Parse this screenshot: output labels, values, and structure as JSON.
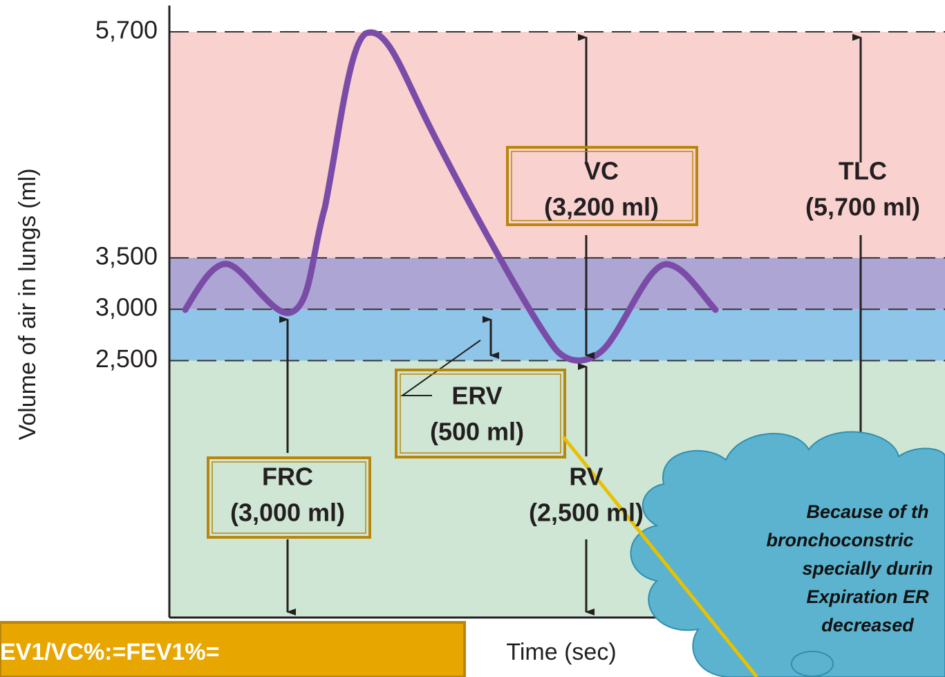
{
  "y_axis": {
    "label": "Volume of air in lungs (ml)",
    "range": [
      0,
      5700
    ],
    "ticks": [
      {
        "value": 5700,
        "label": "5,700"
      },
      {
        "value": 3500,
        "label": "3,500"
      },
      {
        "value": 3000,
        "label": "3,000"
      },
      {
        "value": 2500,
        "label": "2,500"
      }
    ]
  },
  "x_axis": {
    "label": "Time (sec)"
  },
  "labels": [
    {
      "name": "VC",
      "amount": "(3,200 ml)"
    },
    {
      "name": "TLC",
      "amount": "(5,700 ml)"
    },
    {
      "name": "ERV",
      "amount": "(500 ml)"
    },
    {
      "name": "FRC",
      "amount": "(3,000 ml)"
    },
    {
      "name": "RV",
      "amount": "(2,500 ml)"
    }
  ],
  "callout": {
    "lines": [
      "Because of th",
      "bronchoconstric",
      "specially durin",
      "Expiration  ER",
      "decreased"
    ]
  },
  "formula_box": "EV1/VC%:=FEV1%="
}
